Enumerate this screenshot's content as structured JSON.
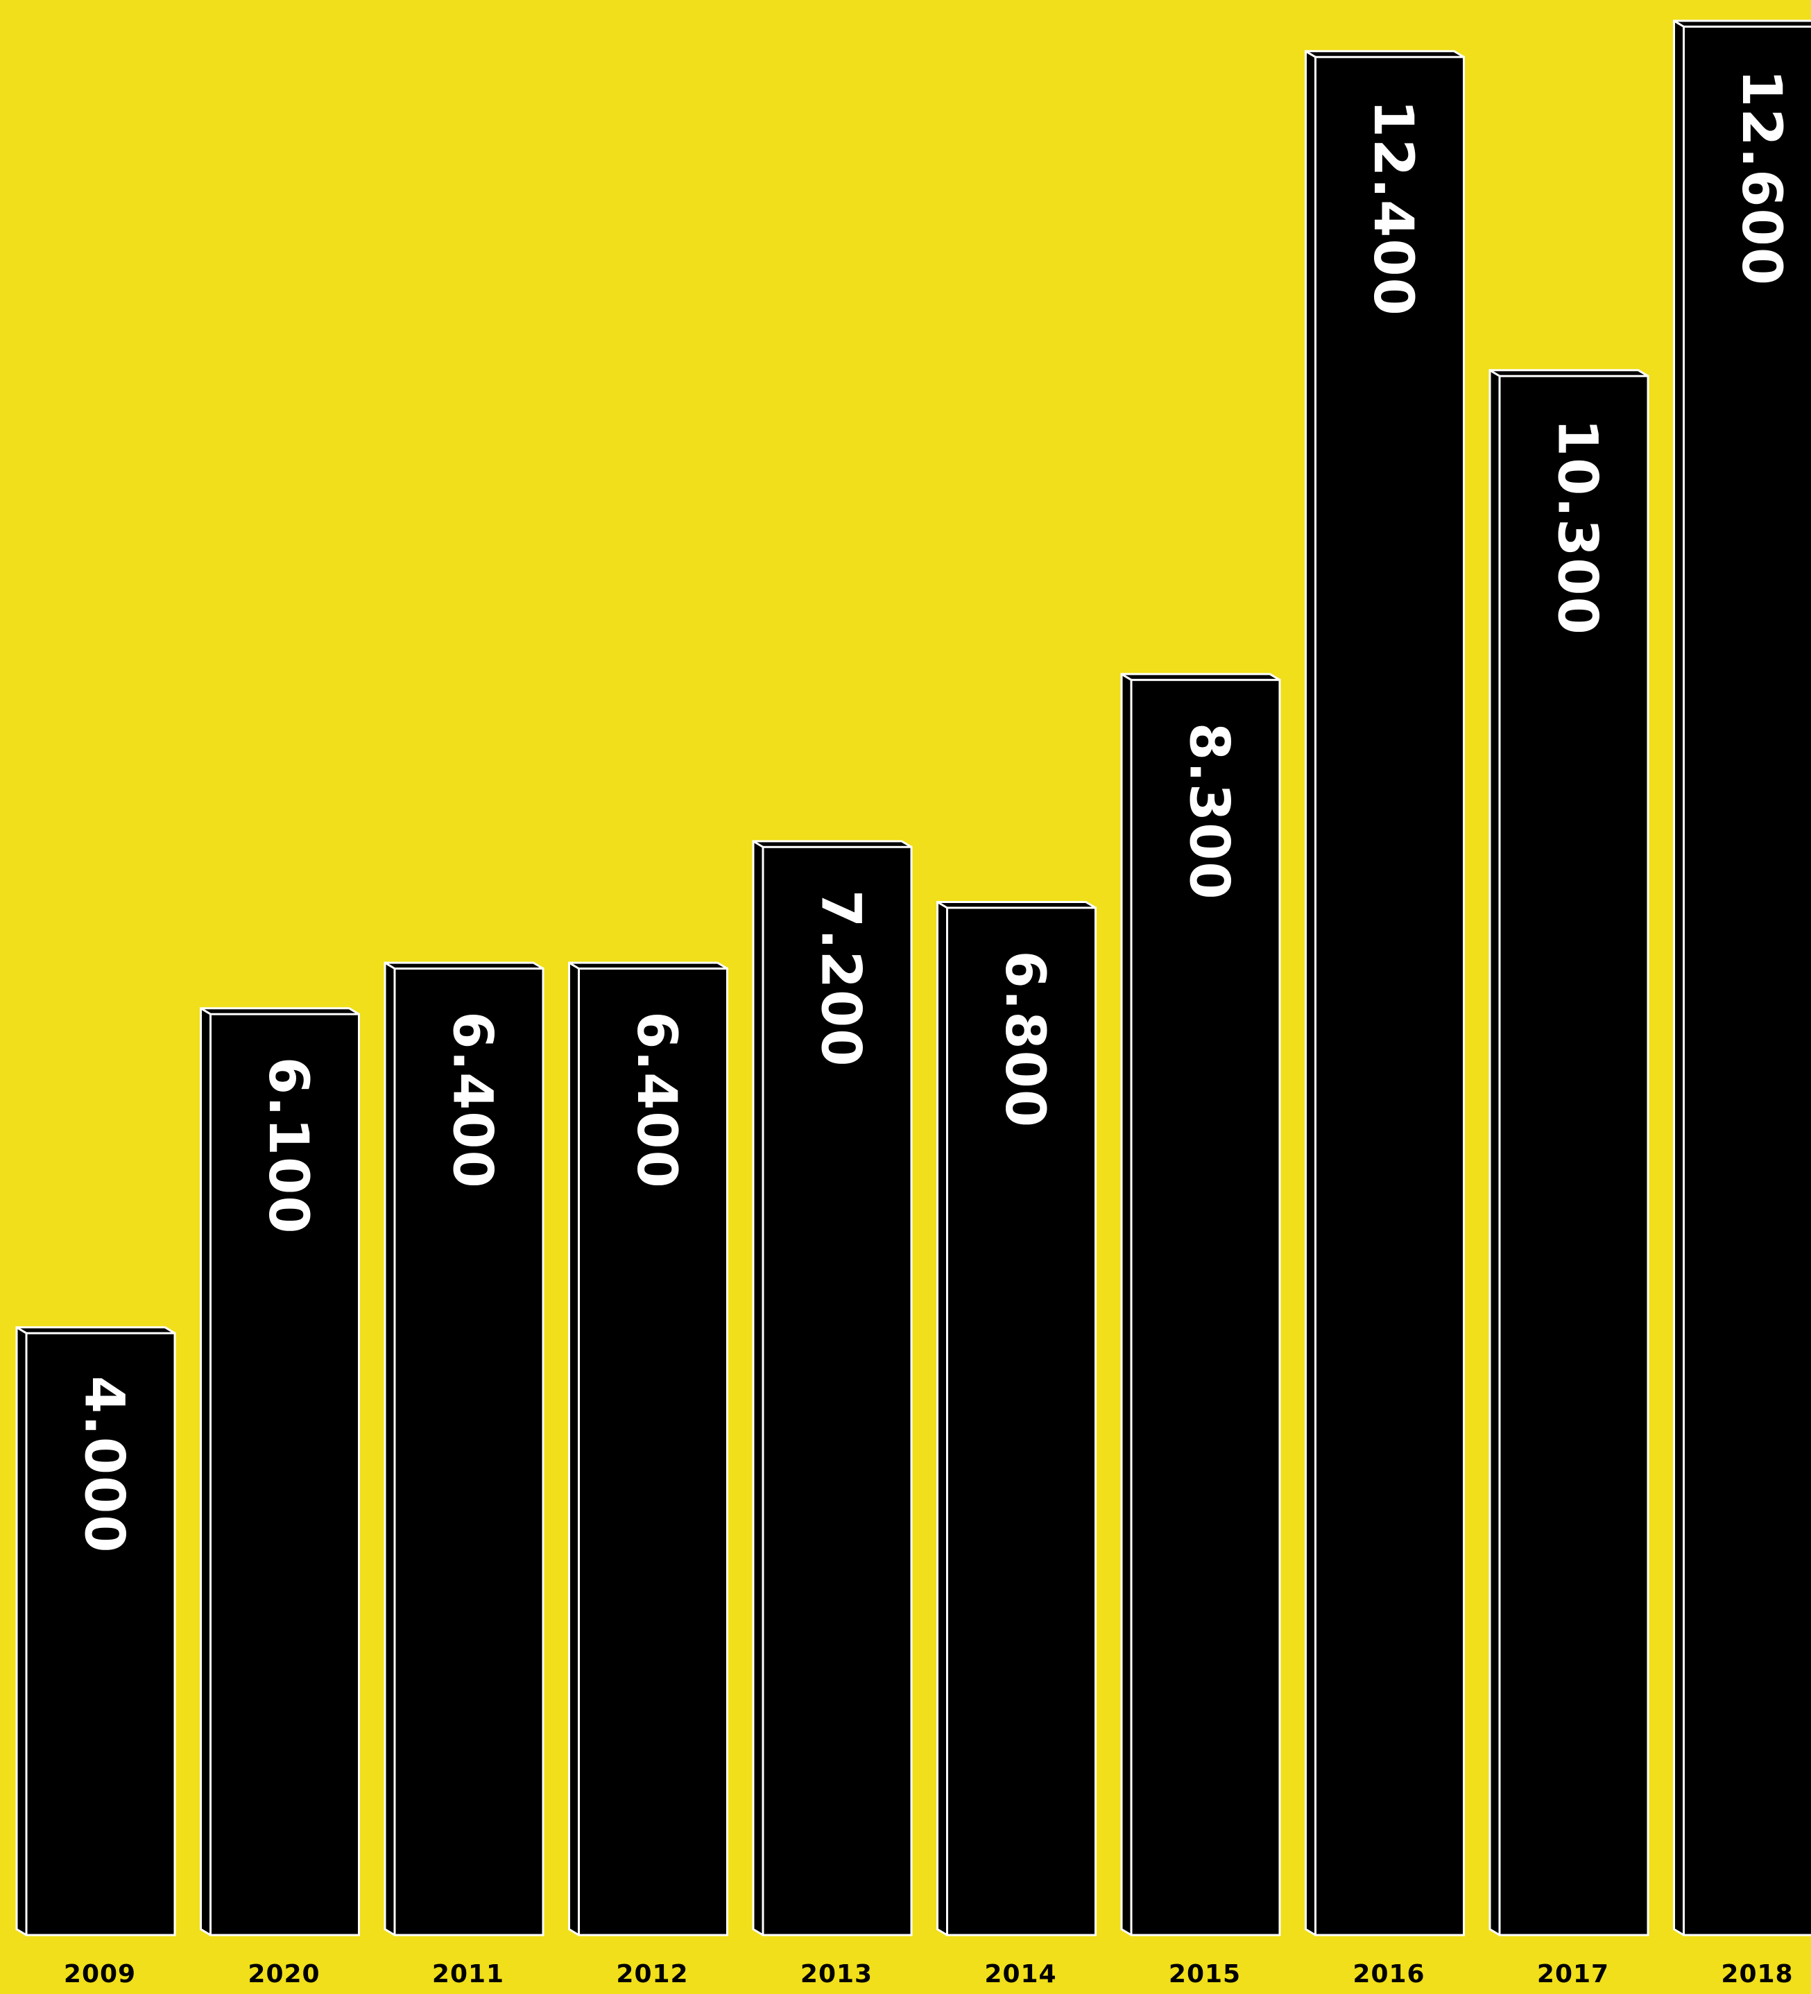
{
  "colors": {
    "background": "#f0df1a",
    "bar": "#000000",
    "outline": "#ffffff",
    "value_text": "#ffffff",
    "year_text": "#000000"
  },
  "chart_data": {
    "type": "bar",
    "title": "",
    "xlabel": "",
    "ylabel": "",
    "ylim": [
      0,
      12600
    ],
    "grid": false,
    "legend": "none",
    "categories": [
      "2009",
      "2020",
      "2011",
      "2012",
      "2013",
      "2014",
      "2015",
      "2016",
      "2017",
      "2018"
    ],
    "values": [
      4000,
      6100,
      6400,
      6400,
      7200,
      6800,
      8300,
      12400,
      10300,
      12600
    ],
    "value_labels": [
      "4.000",
      "6.100",
      "6.400",
      "6.400",
      "7.200",
      "6.800",
      "8.300",
      "12.400",
      "10.300",
      "12.600"
    ],
    "bar_style": "3d-outlined",
    "value_label_orientation": "vertical"
  }
}
